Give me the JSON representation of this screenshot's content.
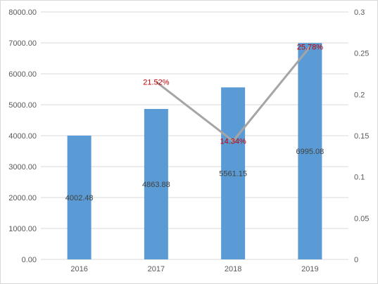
{
  "chart_data": {
    "type": "bar",
    "categories": [
      "2016",
      "2017",
      "2018",
      "2019"
    ],
    "series": [
      {
        "type": "bar",
        "axis": "left",
        "values": [
          4002.48,
          4863.88,
          5561.15,
          6995.08
        ],
        "labels": [
          "4002.48",
          "4863.88",
          "5561.15",
          "6995.08"
        ],
        "color": "#5b9bd5"
      },
      {
        "type": "line",
        "axis": "right",
        "values": [
          null,
          0.2152,
          0.1434,
          0.2578
        ],
        "labels": [
          "",
          "21.52%",
          "14.34%",
          "25.78%"
        ],
        "color": "#a5a5a5"
      }
    ],
    "y_left": {
      "range": [
        0,
        8000
      ],
      "ticks": [
        0,
        1000,
        2000,
        3000,
        4000,
        5000,
        6000,
        7000,
        8000
      ],
      "tick_labels": [
        "0.00",
        "1000.00",
        "2000.00",
        "3000.00",
        "4000.00",
        "5000.00",
        "6000.00",
        "7000.00",
        "8000.00"
      ]
    },
    "y_right": {
      "range": [
        0,
        0.3
      ],
      "ticks": [
        0,
        0.05,
        0.1,
        0.15,
        0.2,
        0.25,
        0.3
      ],
      "tick_labels": [
        "0",
        "0.05",
        "0.1",
        "0.15",
        "0.2",
        "0.25",
        "0.3"
      ]
    },
    "grid": true,
    "label_color": "#c00000"
  }
}
